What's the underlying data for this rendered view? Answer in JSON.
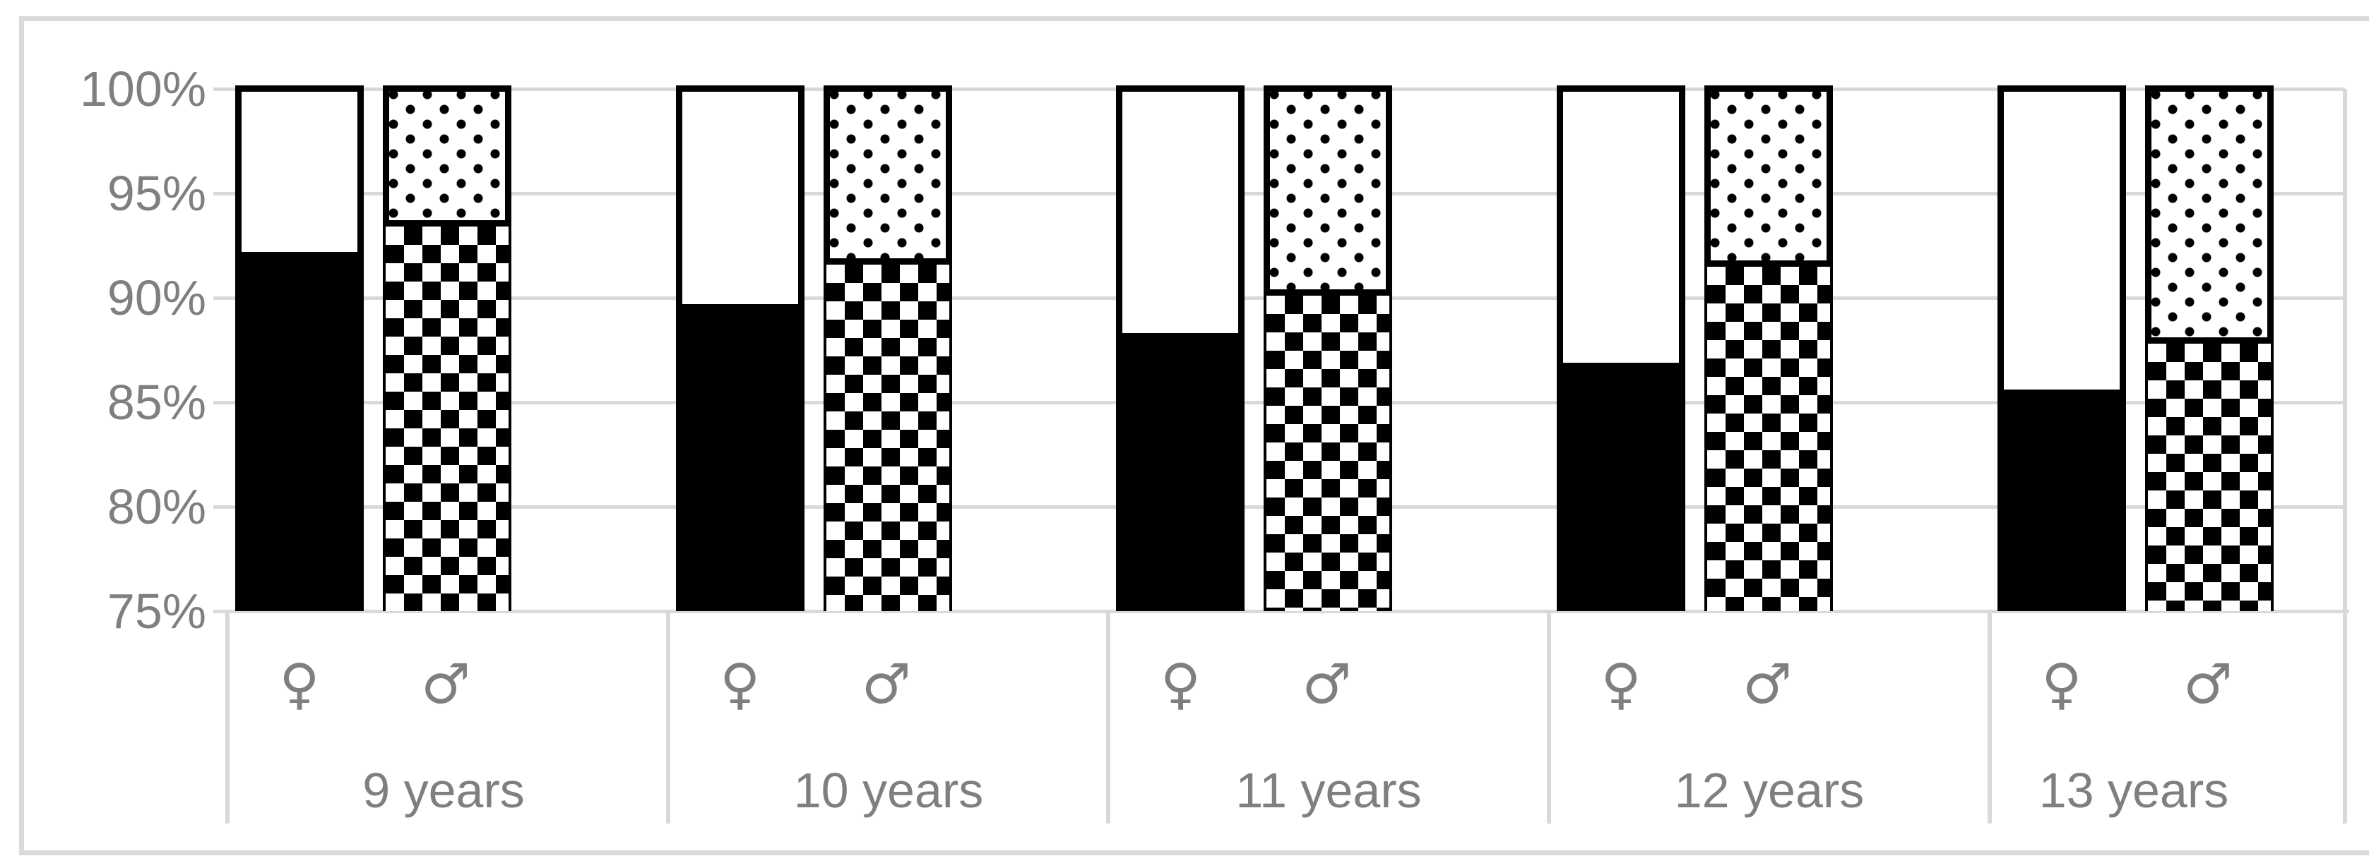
{
  "chart_data": {
    "type": "bar",
    "stacked": true,
    "title": "",
    "unit": "percent",
    "y_axis": {
      "ticks": [
        "100%",
        "95%",
        "90%",
        "85%",
        "80%",
        "75%"
      ],
      "tick_values": [
        100,
        95,
        90,
        85,
        80,
        75
      ],
      "min": 75,
      "max": 100,
      "grid": true
    },
    "x_axis": {
      "sub_labels": [
        "♀",
        "♂"
      ],
      "group_labels": [
        "9 years",
        "10 years",
        "11 years",
        "12 years",
        "13 years"
      ]
    },
    "series": [
      {
        "name": "female-lower-solid-black",
        "values": [
          91.9,
          89.4,
          88.0,
          86.6,
          85.3
        ]
      },
      {
        "name": "female-upper-white-outline",
        "values": [
          8.1,
          10.6,
          12.0,
          13.4,
          14.7
        ]
      },
      {
        "name": "male-lower-checkerboard",
        "values": [
          93.4,
          91.6,
          90.1,
          91.5,
          87.8
        ]
      },
      {
        "name": "male-upper-dotted",
        "values": [
          6.6,
          8.4,
          9.9,
          8.5,
          12.2
        ]
      }
    ],
    "legend": "none",
    "colors": {
      "grid": "#d9d9d9",
      "outer_border": "#d9d9d9",
      "axis_text": "#7f7f7f",
      "bar_fill_black": "#000000",
      "bar_fill_white": "#ffffff"
    }
  }
}
